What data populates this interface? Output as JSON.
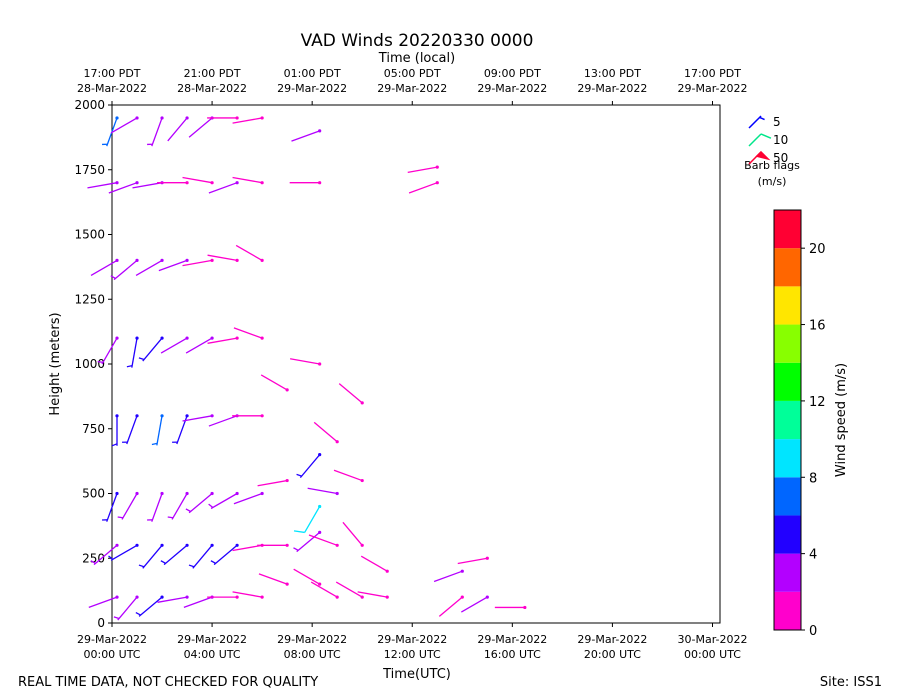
{
  "chart_data": {
    "type": "barbs",
    "title": "VAD Winds 20220330 0000",
    "x2label": "Time (local)",
    "xlabel": "Time(UTC)",
    "ylabel": "Height (meters)",
    "footer_left": "REAL TIME DATA, NOT CHECKED FOR QUALITY",
    "footer_right": "Site: ISS1",
    "xlim": [
      0,
      24.3
    ],
    "ylim": [
      0,
      2000
    ],
    "yticks": [
      0,
      250,
      500,
      750,
      1000,
      1250,
      1500,
      1750,
      2000
    ],
    "xticks": [
      {
        "value": 0,
        "label": [
          "29-Mar-2022",
          "00:00 UTC"
        ]
      },
      {
        "value": 4,
        "label": [
          "29-Mar-2022",
          "04:00 UTC"
        ]
      },
      {
        "value": 8,
        "label": [
          "29-Mar-2022",
          "08:00 UTC"
        ]
      },
      {
        "value": 12,
        "label": [
          "29-Mar-2022",
          "12:00 UTC"
        ]
      },
      {
        "value": 16,
        "label": [
          "29-Mar-2022",
          "16:00 UTC"
        ]
      },
      {
        "value": 20,
        "label": [
          "29-Mar-2022",
          "20:00 UTC"
        ]
      },
      {
        "value": 24,
        "label": [
          "30-Mar-2022",
          "00:00 UTC"
        ]
      }
    ],
    "x2ticks": [
      {
        "value": 0,
        "label": [
          "17:00 PDT",
          "28-Mar-2022"
        ]
      },
      {
        "value": 4,
        "label": [
          "21:00 PDT",
          "28-Mar-2022"
        ]
      },
      {
        "value": 8,
        "label": [
          "01:00 PDT",
          "29-Mar-2022"
        ]
      },
      {
        "value": 12,
        "label": [
          "05:00 PDT",
          "29-Mar-2022"
        ]
      },
      {
        "value": 16,
        "label": [
          "09:00 PDT",
          "29-Mar-2022"
        ]
      },
      {
        "value": 20,
        "label": [
          "13:00 PDT",
          "29-Mar-2022"
        ]
      },
      {
        "value": 24,
        "label": [
          "17:00 PDT",
          "29-Mar-2022"
        ]
      }
    ],
    "barb_flags": [
      {
        "value": 5,
        "color": "#0000ff"
      },
      {
        "value": 10,
        "color": "#00e68a"
      },
      {
        "value": 50,
        "color": "#ff0033"
      }
    ],
    "barb_flags_title": "Barb flags",
    "barb_flags_units": "(m/s)",
    "colorbar": {
      "label": "Wind speed (m/s)",
      "bounds": [
        0,
        2,
        4,
        6,
        8,
        10,
        12,
        14,
        16,
        18,
        20,
        22
      ],
      "colors": [
        "#ff00cc",
        "#b300ff",
        "#2200ff",
        "#0066ff",
        "#00e5ff",
        "#00ff99",
        "#00ff00",
        "#88ff00",
        "#ffe600",
        "#ff6600",
        "#ff0033"
      ],
      "ticks": [
        0,
        4,
        8,
        12,
        16,
        20
      ]
    },
    "barbs": {
      "x": [
        0.2,
        0.2,
        0.2,
        0.2,
        0.2,
        0.2,
        0.2,
        0.2,
        1,
        1,
        1,
        1,
        1,
        1,
        1,
        1,
        2,
        2,
        2,
        2,
        2,
        2,
        2,
        2,
        3,
        3,
        3,
        3,
        3,
        3,
        3,
        3,
        4,
        4,
        4,
        4,
        4,
        4,
        4,
        4,
        5,
        5,
        5,
        5,
        5,
        5,
        5,
        5,
        6,
        6,
        6,
        6,
        6,
        6,
        6,
        6,
        7,
        7,
        7,
        7,
        8.3,
        8.3,
        8.3,
        8.3,
        8.3,
        8.3,
        8.3,
        9,
        9,
        9,
        9,
        10,
        10,
        10,
        10,
        11,
        11,
        13,
        13,
        14,
        14,
        15,
        15,
        16.5
      ],
      "heights": [
        100,
        300,
        500,
        800,
        1100,
        1400,
        1700,
        1950,
        100,
        300,
        500,
        800,
        1100,
        1400,
        1700,
        1950,
        100,
        300,
        500,
        800,
        1100,
        1400,
        1700,
        1950,
        100,
        300,
        500,
        800,
        1100,
        1400,
        1700,
        1950,
        100,
        300,
        500,
        800,
        1100,
        1400,
        1700,
        1950,
        100,
        300,
        500,
        800,
        1100,
        1400,
        1700,
        1950,
        100,
        300,
        500,
        800,
        1100,
        1400,
        1700,
        1950,
        150,
        300,
        550,
        900,
        150,
        350,
        450,
        650,
        1000,
        1700,
        1900,
        100,
        300,
        500,
        700,
        100,
        300,
        550,
        850,
        100,
        200,
        1700,
        1760,
        100,
        200,
        100,
        250,
        60
      ],
      "speeds": [
        2,
        3,
        4,
        5,
        3,
        2,
        2,
        6,
        3,
        4,
        3,
        5,
        5,
        3,
        2,
        2,
        4,
        5,
        3,
        6,
        4,
        2,
        2,
        3,
        2,
        4,
        3,
        5,
        2,
        2,
        1,
        2,
        2,
        5,
        3,
        2,
        2,
        1,
        1,
        2,
        1,
        5,
        3,
        2,
        1,
        1,
        2,
        1,
        1,
        1,
        2,
        1,
        1,
        1,
        1,
        1,
        1,
        1,
        1,
        1,
        1,
        3,
        8,
        4,
        1,
        1,
        2,
        1,
        1,
        2,
        1,
        1,
        1,
        1,
        1,
        1,
        1,
        1,
        1,
        1,
        2,
        2,
        1,
        1
      ],
      "directions": [
        250,
        230,
        200,
        180,
        210,
        240,
        260,
        200,
        220,
        240,
        210,
        200,
        190,
        230,
        250,
        240,
        230,
        220,
        200,
        190,
        220,
        240,
        260,
        200,
        260,
        230,
        210,
        200,
        240,
        250,
        270,
        220,
        250,
        220,
        230,
        260,
        240,
        260,
        280,
        230,
        270,
        230,
        240,
        250,
        260,
        280,
        250,
        270,
        280,
        260,
        250,
        270,
        290,
        300,
        280,
        260,
        290,
        270,
        260,
        300,
        300,
        230,
        210,
        220,
        280,
        270,
        250,
        300,
        290,
        280,
        310,
        300,
        320,
        290,
        310,
        280,
        300,
        250,
        260,
        230,
        250,
        240,
        260,
        270
      ]
    }
  }
}
